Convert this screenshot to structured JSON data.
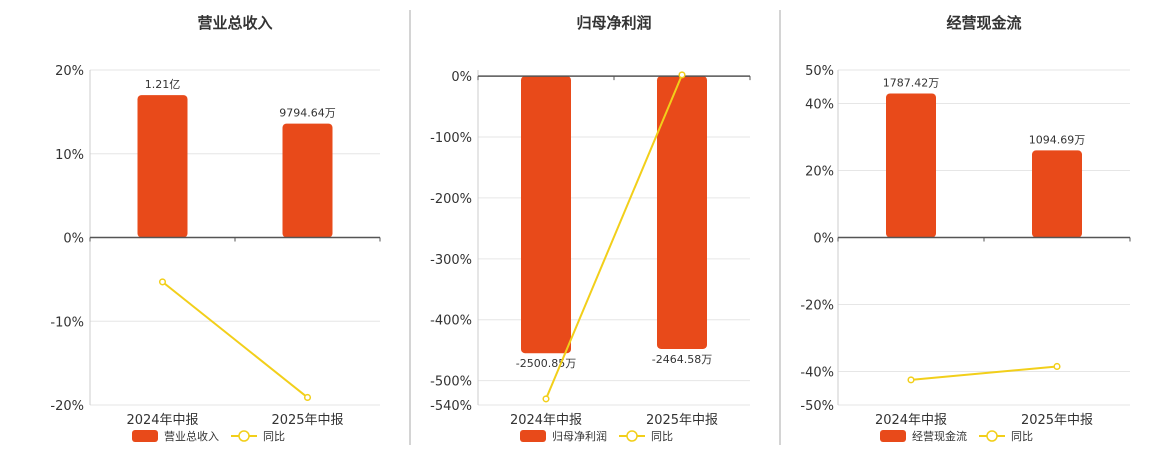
{
  "colors": {
    "bar": "#e84a1a",
    "line": "#f2cf1a",
    "grid": "#e6e6e6",
    "axis": "#555555",
    "divider": "#aaaaaa"
  },
  "chart_data": [
    {
      "type": "bar+line",
      "title": "营业总收入",
      "categories": [
        "2024年中报",
        "2025年中报"
      ],
      "bar_series": {
        "name": "营业总收入",
        "values_pct_axis": [
          17,
          13.6
        ],
        "labels": [
          "1.21亿",
          "9794.64万"
        ]
      },
      "line_series": {
        "name": "同比",
        "values": [
          -5.3,
          -19.1
        ]
      },
      "ylim": [
        -20,
        20
      ],
      "yticks": [
        20,
        10,
        0,
        -10,
        -20
      ],
      "ytick_labels": [
        "20%",
        "10%",
        "0%",
        "-10%",
        "-20%"
      ],
      "grid": true,
      "legend_position": "bottom"
    },
    {
      "type": "bar+line",
      "title": "归母净利润",
      "categories": [
        "2024年中报",
        "2025年中报"
      ],
      "bar_series": {
        "name": "归母净利润",
        "values_pct_axis": [
          -455,
          -448
        ],
        "labels": [
          "-2500.85万",
          "-2464.58万"
        ]
      },
      "line_series": {
        "name": "同比",
        "values": [
          -530,
          2
        ]
      },
      "ylim": [
        -540,
        10
      ],
      "yticks": [
        0,
        -100,
        -200,
        -300,
        -400,
        -500,
        -540
      ],
      "ytick_labels": [
        "0%",
        "-100%",
        "-200%",
        "-300%",
        "-400%",
        "-500%",
        "-540%"
      ],
      "grid": true,
      "legend_position": "bottom"
    },
    {
      "type": "bar+line",
      "title": "经营现金流",
      "categories": [
        "2024年中报",
        "2025年中报"
      ],
      "bar_series": {
        "name": "经营现金流",
        "values_pct_axis": [
          43,
          26
        ],
        "labels": [
          "1787.42万",
          "1094.69万"
        ]
      },
      "line_series": {
        "name": "同比",
        "values": [
          -42.5,
          -38.5
        ]
      },
      "ylim": [
        -50,
        50
      ],
      "yticks": [
        50,
        40,
        20,
        0,
        -20,
        -40,
        -50
      ],
      "ytick_labels": [
        "50%",
        "40%",
        "20%",
        "0%",
        "-20%",
        "-40%",
        "-50%"
      ],
      "grid": true,
      "legend_position": "bottom"
    }
  ]
}
